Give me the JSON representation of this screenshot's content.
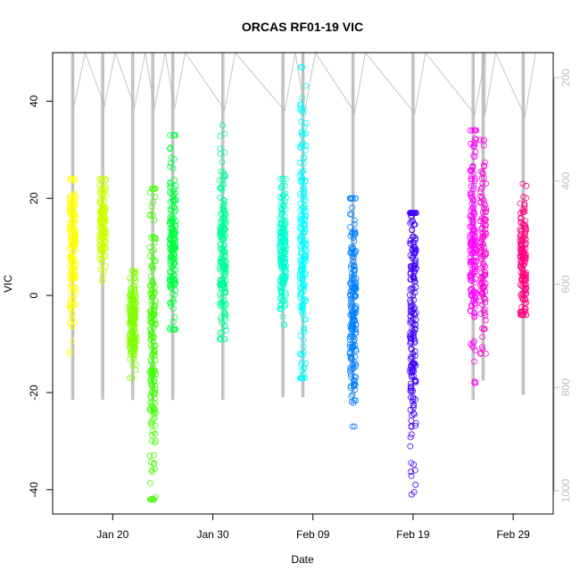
{
  "chart_data": {
    "type": "scatter",
    "title": "ORCAS RF01-19 VIC",
    "xlabel": "Date",
    "ylabel": "VIC",
    "xlim": [
      "2016-01-14",
      "2016-03-04"
    ],
    "ylim": [
      -45,
      50
    ],
    "x_ticks": [
      {
        "date": "2016-01-20",
        "label": "Jan 20"
      },
      {
        "date": "2016-01-30",
        "label": "Jan 30"
      },
      {
        "date": "2016-02-09",
        "label": "Feb 09"
      },
      {
        "date": "2016-02-19",
        "label": "Feb 19"
      },
      {
        "date": "2016-02-29",
        "label": "Feb 29"
      }
    ],
    "y_ticks": [
      -40,
      -20,
      0,
      20,
      40
    ],
    "right_axis": {
      "ticks": [
        200,
        400,
        600,
        800,
        1000
      ],
      "color": "#bdbdbd",
      "reversed": true
    },
    "marker": "open-circle",
    "series": [
      {
        "date": "2016-01-16",
        "color": "#ffff00",
        "min": -12,
        "max": 24,
        "center": 10,
        "n": 150
      },
      {
        "date": "2016-01-19",
        "color": "#ccff00",
        "min": 3,
        "max": 24,
        "center": 14,
        "n": 130
      },
      {
        "date": "2016-01-22",
        "color": "#80ff00",
        "min": -17,
        "max": 5,
        "center": -5,
        "n": 170
      },
      {
        "date": "2016-01-24",
        "color": "#40ff00",
        "min": -42,
        "max": 22,
        "center": -10,
        "n": 170,
        "outliers": [
          -41.5,
          -36,
          -33,
          -30,
          -28,
          -26,
          -24,
          -21,
          -17
        ]
      },
      {
        "date": "2016-01-26",
        "color": "#00ff40",
        "min": -7,
        "max": 33,
        "center": 10,
        "n": 170
      },
      {
        "date": "2016-01-31",
        "color": "#00ff99",
        "min": -9,
        "max": 35,
        "center": 10,
        "n": 190
      },
      {
        "date": "2016-02-06",
        "color": "#00ffd0",
        "min": -6,
        "max": 24,
        "center": 9,
        "n": 170
      },
      {
        "date": "2016-02-08",
        "color": "#00ffff",
        "min": -17,
        "max": 47,
        "center": 10,
        "n": 190
      },
      {
        "date": "2016-02-13",
        "color": "#0080ff",
        "min": -27,
        "max": 20,
        "center": -2,
        "n": 190
      },
      {
        "date": "2016-02-19",
        "color": "#4000ff",
        "min": -41,
        "max": 17,
        "center": -4,
        "n": 190,
        "outliers": [
          -40.5,
          -39,
          -36,
          -34.5,
          -22.5
        ]
      },
      {
        "date": "2016-02-25",
        "color": "#ff00ff",
        "min": -18,
        "max": 34,
        "center": 10,
        "n": 170
      },
      {
        "date": "2016-02-26",
        "color": "#ff00d9",
        "min": -12,
        "max": 32,
        "center": 10,
        "n": 120
      },
      {
        "date": "2016-03-01",
        "color": "#ff0080",
        "min": -4,
        "max": 23,
        "center": 7,
        "n": 150
      }
    ],
    "gray_profiles": [
      {
        "date": "2016-01-16",
        "top": 50,
        "bottom": -21.5
      },
      {
        "date": "2016-01-19",
        "top": 50,
        "bottom": -21.5
      },
      {
        "date": "2016-01-22",
        "top": 50,
        "bottom": -21.5
      },
      {
        "date": "2016-01-24",
        "top": 50,
        "bottom": -21.5
      },
      {
        "date": "2016-01-26",
        "top": 50,
        "bottom": -21.5
      },
      {
        "date": "2016-01-31",
        "top": 50,
        "bottom": -21.5
      },
      {
        "date": "2016-02-06",
        "top": 50,
        "bottom": -21
      },
      {
        "date": "2016-02-08",
        "top": 50,
        "bottom": -21
      },
      {
        "date": "2016-02-13",
        "top": 50,
        "bottom": -20.5
      },
      {
        "date": "2016-02-19",
        "top": 50,
        "bottom": -20.5
      },
      {
        "date": "2016-02-25",
        "top": 50,
        "bottom": -21.5
      },
      {
        "date": "2016-02-26",
        "top": 50,
        "bottom": -17.5
      },
      {
        "date": "2016-03-01",
        "top": 50,
        "bottom": -20.5
      }
    ]
  }
}
